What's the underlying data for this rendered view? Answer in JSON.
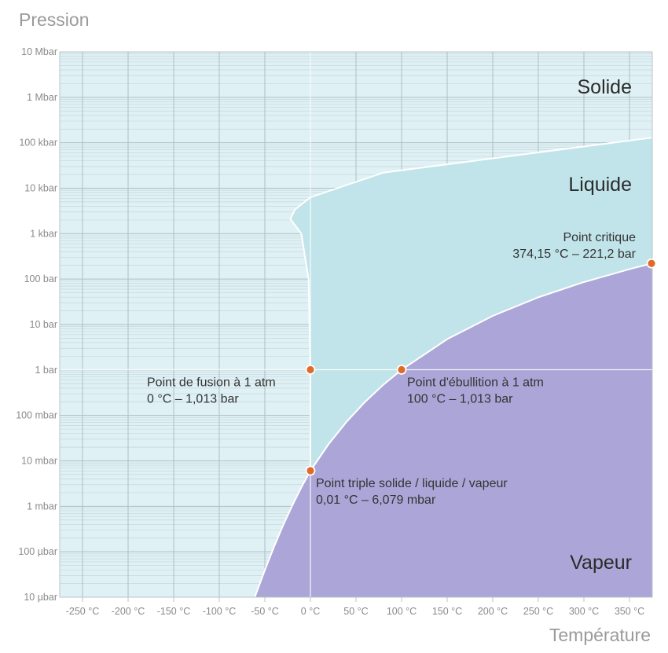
{
  "colors": {
    "plot_bg": "#dff1f5",
    "solid_region": "#dff1f5",
    "liquid_region": "#c1e4ea",
    "vapor_region": "#aba6d7",
    "curve": "#ffffff",
    "point": "#e06a2a",
    "grid_minor": "#c5d7dc",
    "grid_major": "#aebfc4",
    "axis_text": "#8a8a8a",
    "annotation_text": "#333333"
  },
  "chart_data": {
    "type": "area",
    "xlabel": "Température",
    "ylabel": "Pression",
    "xlim": [
      -275,
      375
    ],
    "ylim_bar": [
      1e-05,
      10000000.0
    ],
    "y_scale": "log",
    "grid": true,
    "x_ticks": [
      {
        "v": -250,
        "label": "-250 °C"
      },
      {
        "v": -200,
        "label": "-200 °C"
      },
      {
        "v": -150,
        "label": "-150 °C"
      },
      {
        "v": -100,
        "label": "-100 °C"
      },
      {
        "v": -50,
        "label": "-50 °C"
      },
      {
        "v": 0,
        "label": "0 °C"
      },
      {
        "v": 50,
        "label": "50 °C"
      },
      {
        "v": 100,
        "label": "100 °C"
      },
      {
        "v": 150,
        "label": "150 °C"
      },
      {
        "v": 200,
        "label": "200 °C"
      },
      {
        "v": 250,
        "label": "250 °C"
      },
      {
        "v": 300,
        "label": "300 °C"
      },
      {
        "v": 350,
        "label": "350 °C"
      }
    ],
    "y_ticks": [
      {
        "v": 10000000.0,
        "label": "10 Mbar"
      },
      {
        "v": 1000000.0,
        "label": "1 Mbar"
      },
      {
        "v": 100000.0,
        "label": "100 kbar"
      },
      {
        "v": 10000.0,
        "label": "10 kbar"
      },
      {
        "v": 1000.0,
        "label": "1 kbar"
      },
      {
        "v": 100,
        "label": "100 bar"
      },
      {
        "v": 10,
        "label": "10 bar"
      },
      {
        "v": 1,
        "label": "1 bar"
      },
      {
        "v": 0.1,
        "label": "100 mbar"
      },
      {
        "v": 0.01,
        "label": "10 mbar"
      },
      {
        "v": 0.001,
        "label": "1 mbar"
      },
      {
        "v": 0.0001,
        "label": "100 µbar"
      },
      {
        "v": 1e-05,
        "label": "10 µbar"
      }
    ],
    "regions": [
      {
        "name": "Solide",
        "label_T": 350,
        "label_P": 800000
      },
      {
        "name": "Liquide",
        "label_T": 350,
        "label_P": 9000
      },
      {
        "name": "Vapeur",
        "label_T": 350,
        "label_P": 7e-05
      }
    ],
    "series": [
      {
        "name": "sublimation",
        "points": [
          [
            -61,
            1e-05
          ],
          [
            -50,
            3.94e-05
          ],
          [
            -40,
            0.000128
          ],
          [
            -30,
            0.00038
          ],
          [
            -20,
            0.00103
          ],
          [
            -10,
            0.0026
          ],
          [
            0.01,
            0.006079
          ]
        ]
      },
      {
        "name": "vaporisation",
        "points": [
          [
            0.01,
            0.006079
          ],
          [
            20,
            0.0234
          ],
          [
            40,
            0.0738
          ],
          [
            60,
            0.199
          ],
          [
            80,
            0.474
          ],
          [
            100,
            1.013
          ],
          [
            150,
            4.76
          ],
          [
            200,
            15.5
          ],
          [
            250,
            39.7
          ],
          [
            300,
            85.9
          ],
          [
            350,
            165
          ],
          [
            374.15,
            221.2
          ]
        ]
      },
      {
        "name": "fusion",
        "points": [
          [
            0.01,
            0.006079
          ],
          [
            0,
            1.013
          ],
          [
            -1,
            10
          ],
          [
            -2,
            100
          ],
          [
            -10,
            1000
          ],
          [
            -22,
            2100
          ],
          [
            -17,
            3400
          ],
          [
            0,
            6300
          ],
          [
            80,
            22000
          ],
          [
            375,
            130000
          ]
        ]
      }
    ],
    "points": [
      {
        "T": 0,
        "P": 1.013,
        "line1": "Point de fusion à 1 atm",
        "line2": "0 °C – 1,013 bar",
        "anchor": "left"
      },
      {
        "T": 100,
        "P": 1.013,
        "line1": "Point d'ébullition à 1 atm",
        "line2": "100 °C – 1,013 bar",
        "anchor": "right-below"
      },
      {
        "T": 0.01,
        "P": 0.006079,
        "line1": "Point triple solide / liquide / vapeur",
        "line2": "0,01 °C – 6,079 mbar",
        "anchor": "right-below"
      },
      {
        "T": 374.15,
        "P": 221.2,
        "line1": "Point critique",
        "line2": "374,15 °C –  221,2 bar",
        "anchor": "above-left"
      }
    ]
  }
}
